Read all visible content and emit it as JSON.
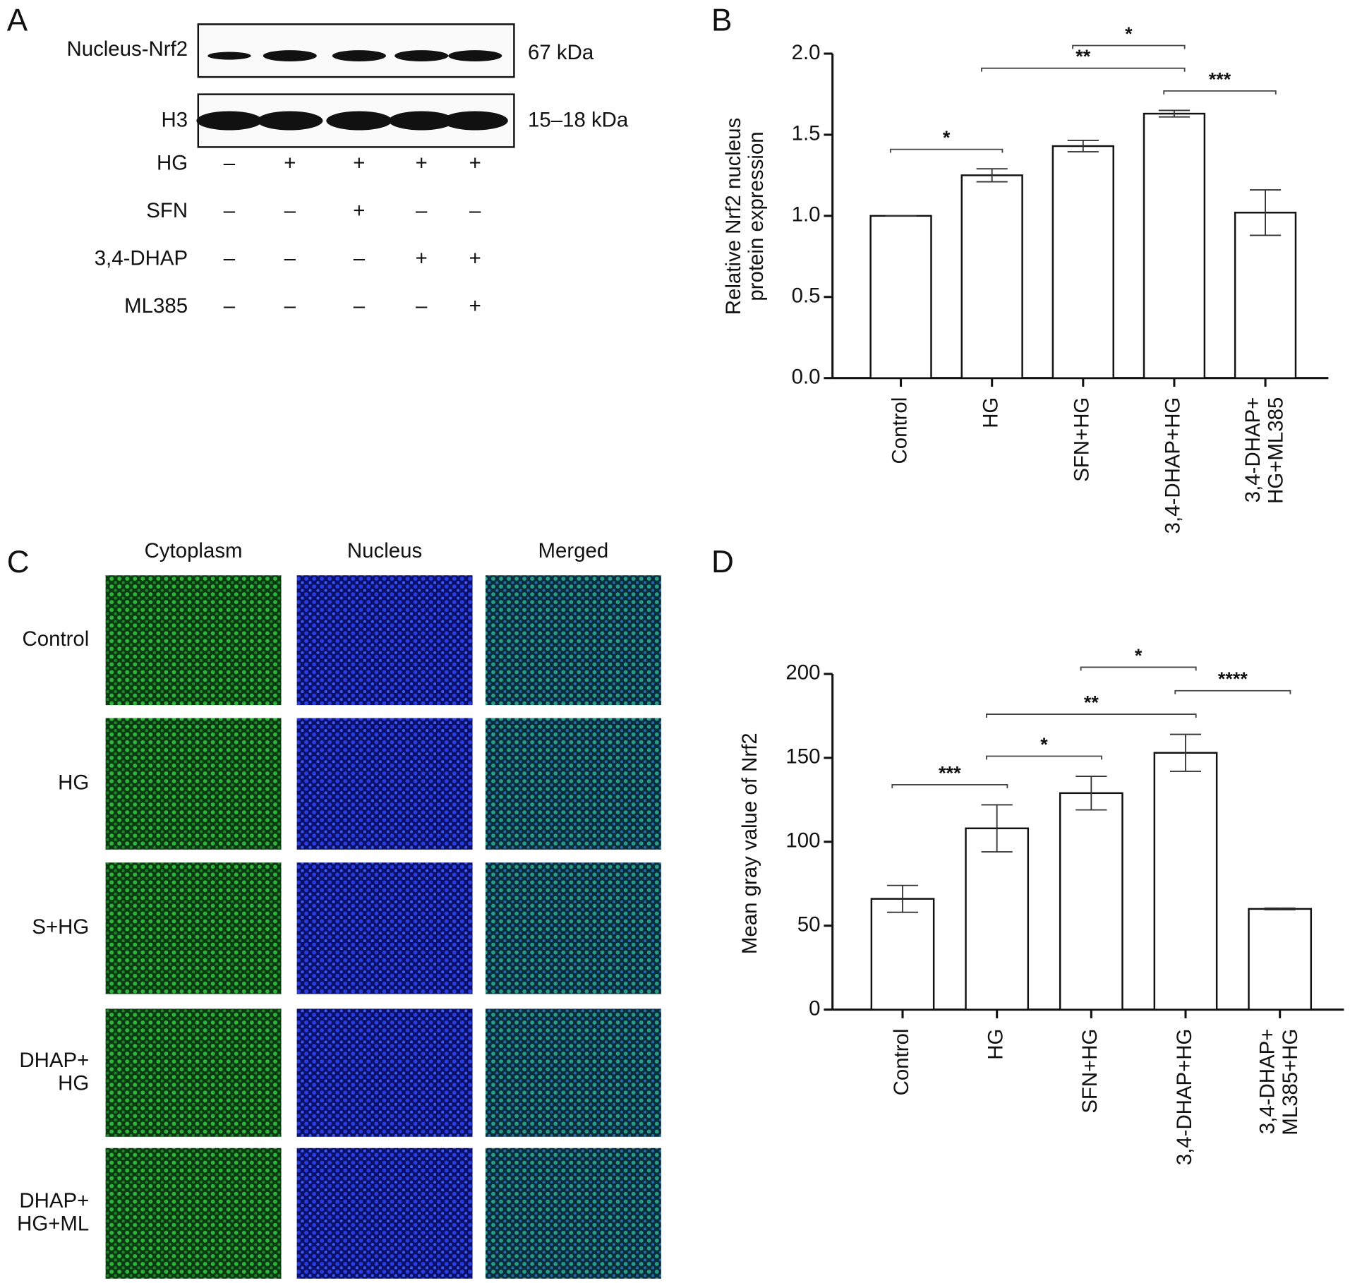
{
  "blot": {
    "label": "A",
    "rows": [
      {
        "name": "Nucleus-Nrf2",
        "size": "67 kDa"
      },
      {
        "name": "H3",
        "size": "15–18 kDa"
      }
    ],
    "treatments": [
      {
        "name": "HG",
        "signs": [
          "–",
          "+",
          "+",
          "+",
          "+"
        ]
      },
      {
        "name": "SFN",
        "signs": [
          "–",
          "–",
          "+",
          "–",
          "–"
        ]
      },
      {
        "name": "3,4-DHAP",
        "signs": [
          "–",
          "–",
          "–",
          "+",
          "+"
        ]
      },
      {
        "name": "ML385",
        "signs": [
          "–",
          "–",
          "–",
          "–",
          "+"
        ]
      }
    ]
  },
  "microscopy": {
    "label": "C",
    "columns": [
      "Cytoplasm",
      "Nucleus",
      "Merged"
    ],
    "rows": [
      "Control",
      "HG",
      "S+HG",
      "DHAP+\nHG",
      "DHAP+\nHG+ML"
    ]
  },
  "chart_data": [
    {
      "type": "bar",
      "panel": "B",
      "y_label": "Relative Nrf2 nucleus\nprotein expression",
      "categories": [
        "Control",
        "HG",
        "SFN+HG",
        "3,4-DHAP+HG",
        "3,4-DHAP+\nHG+ML385"
      ],
      "values": [
        1.0,
        1.25,
        1.43,
        1.63,
        1.02
      ],
      "errors": [
        0,
        0.04,
        0.035,
        0.02,
        0.14
      ],
      "ylim": [
        0,
        2
      ],
      "yticks": [
        {
          "value": 0,
          "label": "0.0"
        },
        {
          "value": 0.5,
          "label": "0.5"
        },
        {
          "value": 1,
          "label": "1.0"
        },
        {
          "value": 1.5,
          "label": "1.5"
        },
        {
          "value": 2,
          "label": "2.0"
        }
      ],
      "color": "#ffffff",
      "comparisons": [
        {
          "groups": [
            0,
            1
          ],
          "label": "*"
        },
        {
          "groups": [
            3,
            4
          ],
          "label": "***"
        },
        {
          "groups": [
            1,
            3
          ],
          "label": "**"
        },
        {
          "groups": [
            2,
            3
          ],
          "label": "*"
        }
      ]
    },
    {
      "type": "bar",
      "panel": "D",
      "y_label": "Mean gray value of Nrf2",
      "categories": [
        "Control",
        "HG",
        "SFN+HG",
        "3,4-DHAP+HG",
        "3,4-DHAP+\nML385+HG"
      ],
      "values": [
        66,
        108,
        129,
        153,
        60
      ],
      "errors": [
        8,
        14,
        10,
        11,
        0.5
      ],
      "ylim": [
        0,
        200
      ],
      "yticks": [
        0,
        50,
        100,
        150,
        200
      ],
      "color": "#ffffff",
      "comparisons": [
        {
          "groups": [
            0,
            1
          ],
          "label": "***"
        },
        {
          "groups": [
            1,
            2
          ],
          "label": "*"
        },
        {
          "groups": [
            1,
            3
          ],
          "label": "**"
        },
        {
          "groups": [
            3,
            4
          ],
          "label": "****"
        },
        {
          "groups": [
            2,
            3
          ],
          "label": "*"
        }
      ]
    }
  ]
}
